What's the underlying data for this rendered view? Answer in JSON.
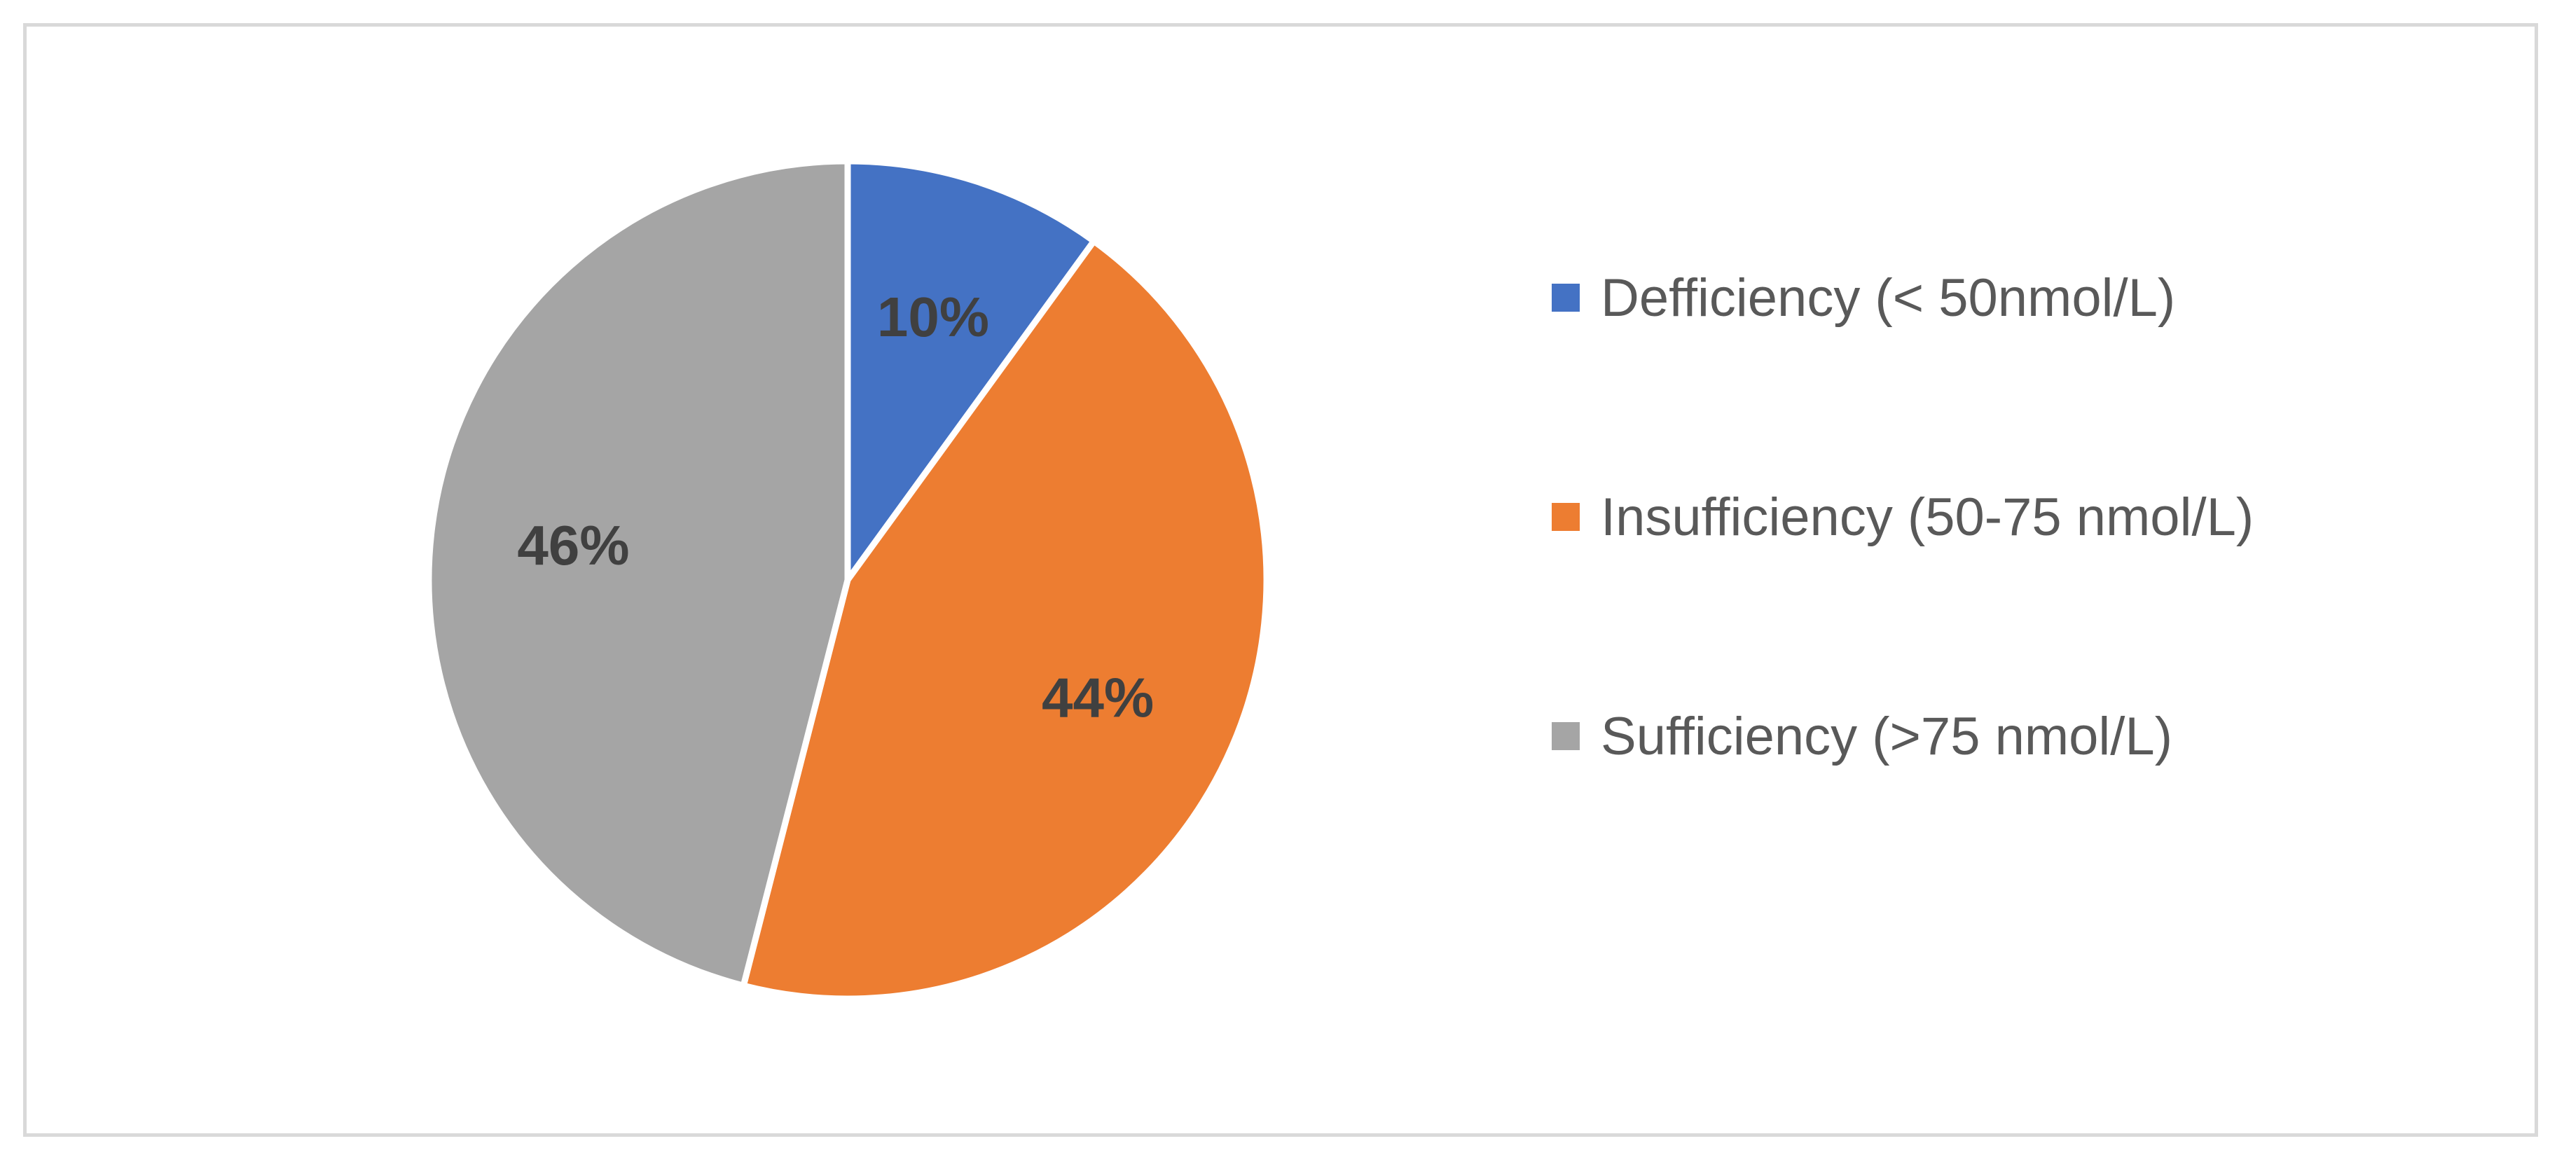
{
  "chart_data": {
    "type": "pie",
    "categories": [
      "Defficiency (< 50nmol/L)",
      "Insufficiency (50-75 nmol/L)",
      "Sufficiency (>75 nmol/L)"
    ],
    "values": [
      10,
      44,
      46
    ],
    "data_labels": [
      "10%",
      "44%",
      "46%"
    ],
    "colors": [
      "#4472C4",
      "#ED7D31",
      "#A5A5A5"
    ],
    "legend_position": "right",
    "title": ""
  }
}
